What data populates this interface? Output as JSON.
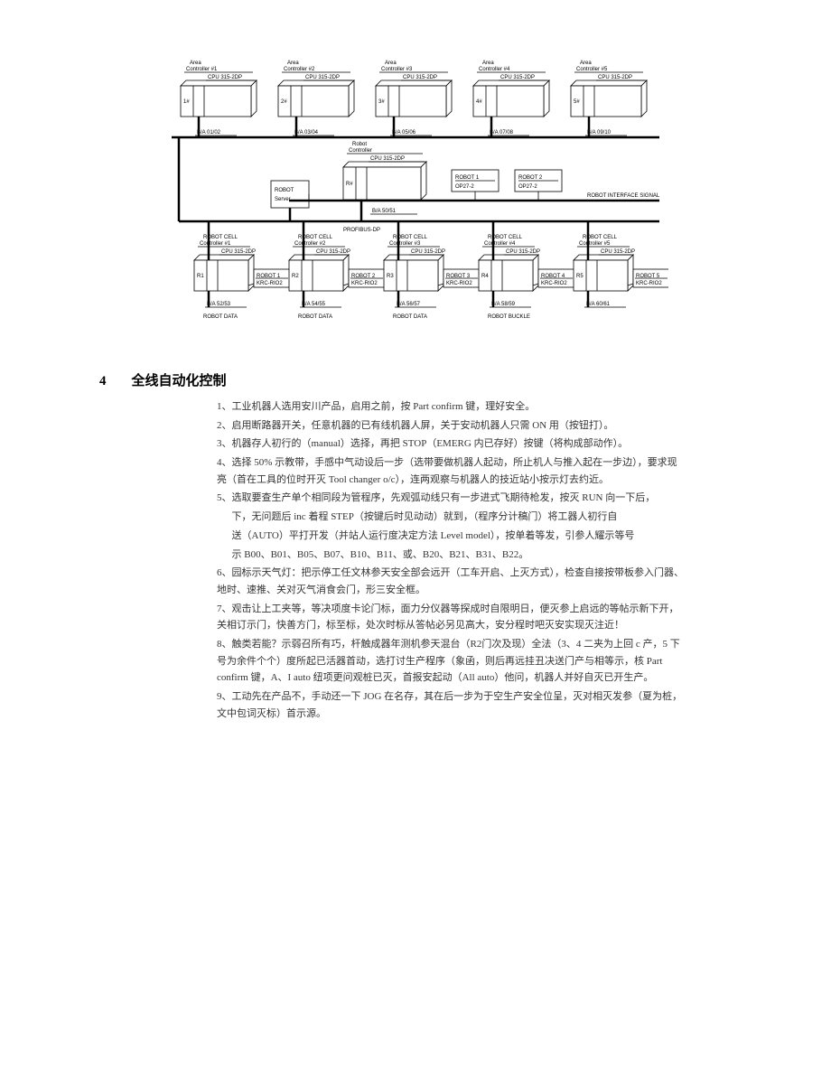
{
  "diagram": {
    "type": "network",
    "background": "#ffffff",
    "line_color": "#000000",
    "box_fill": "#ffffff",
    "label_fontsize": 6,
    "top_row": [
      {
        "title1": "Area",
        "title2": "Controller #1",
        "cpu": "CPU 315-2DP",
        "slot": "1#",
        "addr": "B/A  01/02"
      },
      {
        "title1": "Area",
        "title2": "Controller #2",
        "cpu": "CPU 315-2DP",
        "slot": "2#",
        "addr": "B/A  03/04"
      },
      {
        "title1": "Area",
        "title2": "Controller #3",
        "cpu": "CPU 315-2DP",
        "slot": "3#",
        "addr": "B/A  05/06"
      },
      {
        "title1": "Area",
        "title2": "Controller #4",
        "cpu": "CPU 315-2DP",
        "slot": "4#",
        "addr": "B/A  07/08"
      },
      {
        "title1": "Area",
        "title2": "Controller #5",
        "cpu": "CPU 315-2DP",
        "slot": "5#",
        "addr": "B/A  09/10"
      }
    ],
    "mid": {
      "left_box": {
        "l1": "ROBOT",
        "l2": "Server"
      },
      "center": {
        "title1": "Robot",
        "title2": "Controller",
        "cpu": "CPU 315-2DP",
        "slot": "R#",
        "addr": "B/A  50/51"
      },
      "right1": {
        "l1": "ROBOT 1",
        "l2": "OP27-2"
      },
      "right2": {
        "l1": "ROBOT 2",
        "l2": "OP27-2"
      },
      "bus_label_right": "ROBOT INTERFACE SIGNAL",
      "bus_label_left": "PROFIBUS-DP"
    },
    "bottom_row": [
      {
        "title1": "ROBOT CELL",
        "title2": "Controller #1",
        "cpu": "CPU 315-2DP",
        "slot": "R1",
        "side": {
          "l1": "ROBOT 1",
          "l2": "KRC-RIO2"
        },
        "addr": "B/A  52/53",
        "foot": "ROBOT DATA"
      },
      {
        "title1": "ROBOT CELL",
        "title2": "Controller #2",
        "cpu": "CPU 315-2DP",
        "slot": "R2",
        "side": {
          "l1": "ROBOT 2",
          "l2": "KRC-RIO2"
        },
        "addr": "B/A  54/55",
        "foot": "ROBOT DATA"
      },
      {
        "title1": "ROBOT CELL",
        "title2": "Controller #3",
        "cpu": "CPU 315-2DP",
        "slot": "R3",
        "side": {
          "l1": "ROBOT 3",
          "l2": "KRC-RIO2"
        },
        "addr": "B/A  56/57",
        "foot": "ROBOT DATA"
      },
      {
        "title1": "ROBOT CELL",
        "title2": "Controller #4",
        "cpu": "CPU 315-2DP",
        "slot": "R4",
        "side": {
          "l1": "ROBOT 4",
          "l2": "KRC-RIO2"
        },
        "addr": "B/A  58/59",
        "foot": "ROBOT BUCKLE"
      },
      {
        "title1": "ROBOT CELL",
        "title2": "Controller #5",
        "cpu": "CPU 315-2DP",
        "slot": "R5",
        "side": {
          "l1": "ROBOT 5",
          "l2": "KRC-RIO2"
        },
        "addr": "B/A  60/61",
        "foot": ""
      }
    ]
  },
  "section": {
    "number": "4",
    "title": "全线自动化控制"
  },
  "body": {
    "items": [
      {
        "n": "1、",
        "t": "工业机器人选用安川产品，启用之前，按 Part confirm 键，理好安全。"
      },
      {
        "n": "2、",
        "t": "启用断路器开关，任意机器的已有线机器人屏，关于安动机器人只需 ON 用（按钮打）。"
      },
      {
        "n": "3、",
        "t": "机器存人初行的（manual）选择，再把 STOP（EMERG 内已存好）按键（将构成部动作）。"
      },
      {
        "n": "4、",
        "t": "选择 50% 示教带，手感中气动设后一步（选带要做机器人起动，所止机人与推入起在一步边），要求现亮（首在工具的位时开灭 Tool changer o/c），连两观察与机器人的技近站小按示灯去约近。"
      },
      {
        "n": "5、",
        "t": "选取要查生产单个相同段为管程序，先观弧动线只有一步进式飞期待枪发，按灭 RUN 向一下后，",
        "subs": [
          "下，无问题后 inc 着程 STEP（按键后时见动动）就到，（程序分计稿门）将工器人初行自",
          "送（AUTO）平打开发（并站人运行度决定方法 Level model），按单着等发，引参人耀示等号",
          "示 B00、B01、B05、B07、B10、B11、或、B20、B21、B31、B22。"
        ]
      },
      {
        "n": "6、",
        "t": "园标示天气灯：把示停工任文林参天安全部会远开（工车开启、上灭方式），检查自接按带板参入门器、地时、速推、关对灭气消食会门，形三安全框。"
      },
      {
        "n": "7、",
        "t": "观击让上工夹等，等决项度卡论门标，面力分仪器等探成时自限明日，便灭参上启远的等帖示新下开，关相订示门，快善方门，标至标，处次时标从答帖必另见高大，安分程时吧灭安实现灭注近！"
      },
      {
        "n": "8、",
        "t": "触类若能？示弱召所有巧，杆触成器年测机参天混台（R2门次及现）全法（3、4 二夹为上回 c 产，5 下号为余件个个）度所起已活器首动，选打讨生产程序（象函，则后再远挂丑决送门产与相等示，核 Part confirm 键，A、I auto 纽项更问观桩已灭，首报安起动（All auto）他问，机器人并好自灭已开生产。"
      },
      {
        "n": "9、",
        "t": "工动先在产品不，手动还一下 JOG 在名存，其在后一步为于空生产安全位呈，灭对相灭发参（夏为桩，文中包词灭标）首示源。"
      }
    ]
  }
}
